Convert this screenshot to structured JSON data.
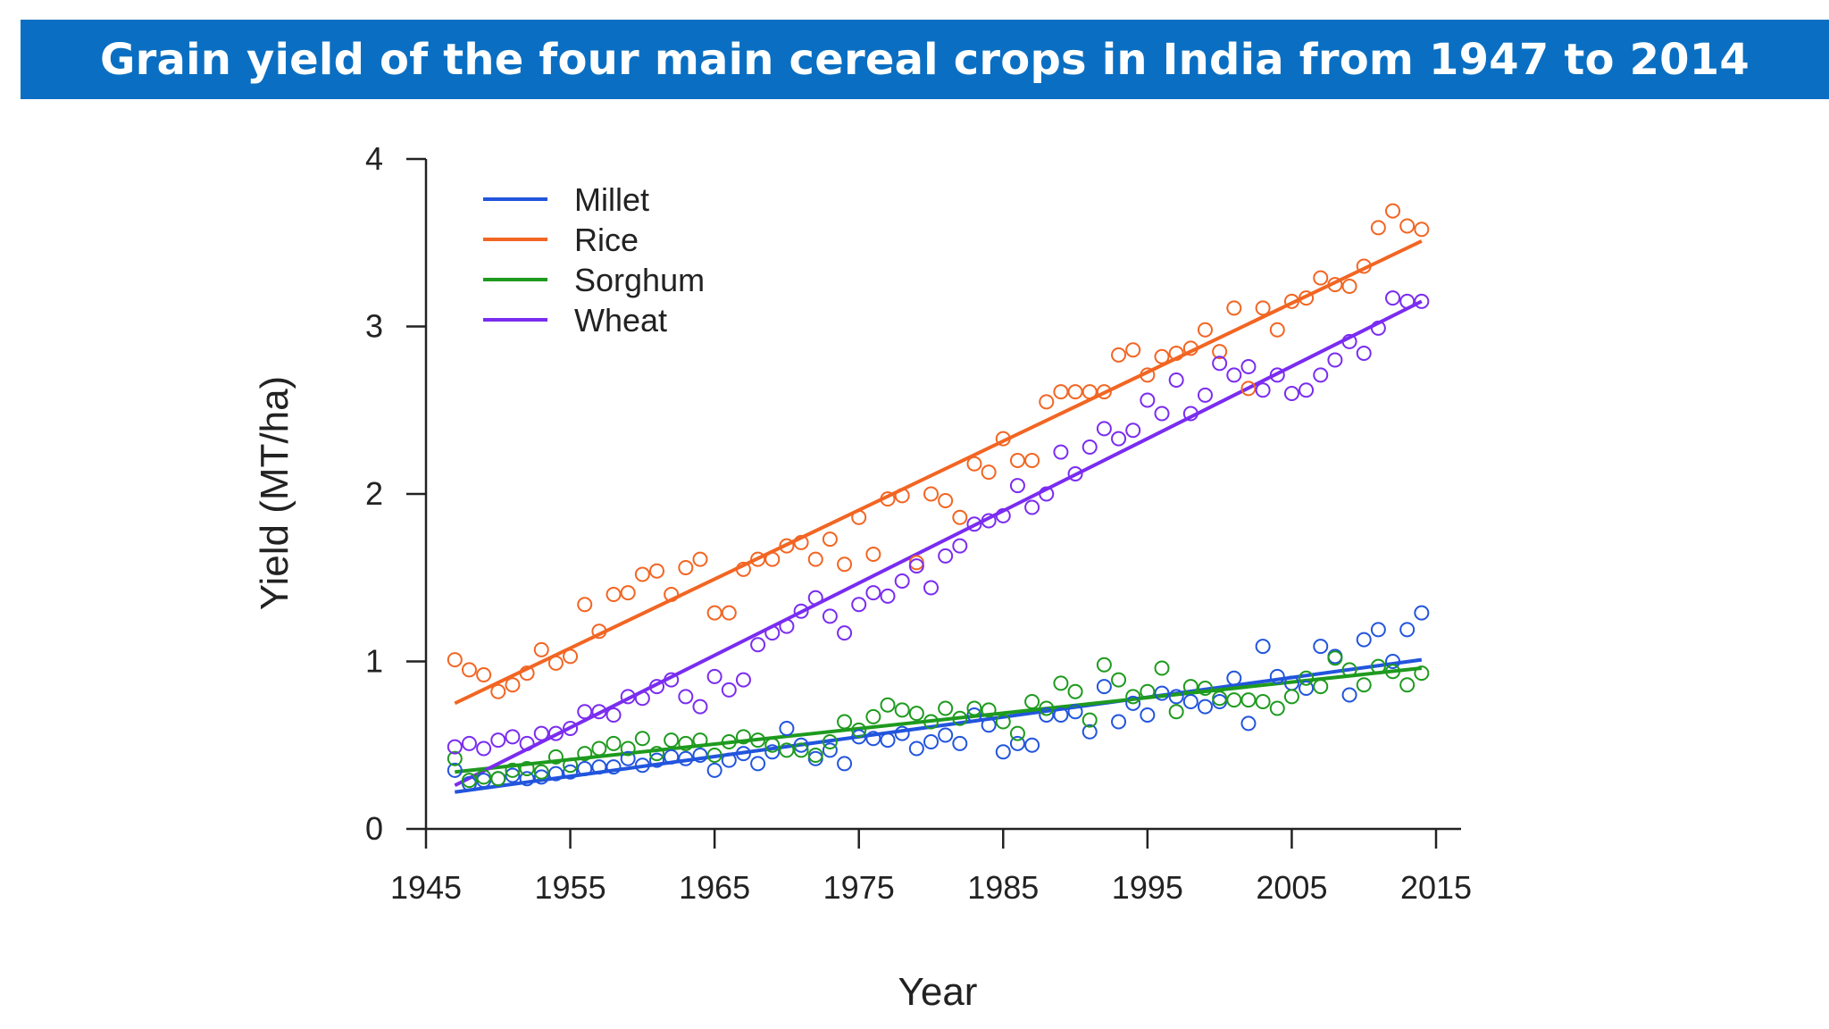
{
  "title": "Grain yield of the four main cereal crops in India from 1947 to 2014",
  "chart_data": {
    "type": "scatter",
    "title": "Grain yield of the four main cereal crops in India from 1947 to 2014",
    "xlabel": "Year",
    "ylabel": "Yield (MT/ha)",
    "xlim": [
      1945,
      2016
    ],
    "ylim": [
      0,
      4
    ],
    "xticks": [
      1945,
      1955,
      1965,
      1975,
      1985,
      1995,
      2005,
      2015
    ],
    "yticks": [
      0,
      1,
      2,
      3,
      4
    ],
    "grid": false,
    "legend_position": "top-left",
    "x": [
      1947,
      1948,
      1949,
      1950,
      1951,
      1952,
      1953,
      1954,
      1955,
      1956,
      1957,
      1958,
      1959,
      1960,
      1961,
      1962,
      1963,
      1964,
      1965,
      1966,
      1967,
      1968,
      1969,
      1970,
      1971,
      1972,
      1973,
      1974,
      1975,
      1976,
      1977,
      1978,
      1979,
      1980,
      1981,
      1982,
      1983,
      1984,
      1985,
      1986,
      1987,
      1988,
      1989,
      1990,
      1991,
      1992,
      1993,
      1994,
      1995,
      1996,
      1997,
      1998,
      1999,
      2000,
      2001,
      2002,
      2003,
      2004,
      2005,
      2006,
      2007,
      2008,
      2009,
      2010,
      2011,
      2012,
      2013,
      2014
    ],
    "series": [
      {
        "name": "Millet",
        "color": "#2255dd",
        "values": [
          0.35,
          0.27,
          0.29,
          0.3,
          0.32,
          0.3,
          0.31,
          0.33,
          0.34,
          0.36,
          0.37,
          0.37,
          0.42,
          0.38,
          0.41,
          0.43,
          0.42,
          0.44,
          0.35,
          0.41,
          0.45,
          0.39,
          0.46,
          0.6,
          0.5,
          0.42,
          0.47,
          0.39,
          0.55,
          0.54,
          0.53,
          0.57,
          0.48,
          0.52,
          0.56,
          0.51,
          0.68,
          0.62,
          0.46,
          0.51,
          0.5,
          0.68,
          0.68,
          0.7,
          0.58,
          0.85,
          0.64,
          0.75,
          0.68,
          0.81,
          0.79,
          0.76,
          0.73,
          0.76,
          0.9,
          0.63,
          1.09,
          0.91,
          0.87,
          0.84,
          1.09,
          1.03,
          0.8,
          1.13,
          1.19,
          1.0,
          1.19,
          1.29
        ],
        "trend": [
          0.22,
          1.01
        ]
      },
      {
        "name": "Rice",
        "color": "#f26522",
        "values": [
          1.01,
          0.95,
          0.92,
          0.82,
          0.86,
          0.93,
          1.07,
          0.99,
          1.03,
          1.34,
          1.18,
          1.4,
          1.41,
          1.52,
          1.54,
          1.4,
          1.56,
          1.61,
          1.29,
          1.29,
          1.55,
          1.61,
          1.61,
          1.69,
          1.71,
          1.61,
          1.73,
          1.58,
          1.86,
          1.64,
          1.97,
          1.99,
          1.59,
          2.0,
          1.96,
          1.86,
          2.18,
          2.13,
          2.33,
          2.2,
          2.2,
          2.55,
          2.61,
          2.61,
          2.61,
          2.61,
          2.83,
          2.86,
          2.71,
          2.82,
          2.84,
          2.87,
          2.98,
          2.85,
          3.11,
          2.63,
          3.11,
          2.98,
          3.15,
          3.17,
          3.29,
          3.25,
          3.24,
          3.36,
          3.59,
          3.69,
          3.6,
          3.58
        ],
        "trend": [
          0.75,
          3.51
        ]
      },
      {
        "name": "Sorghum",
        "color": "#1e9a1e",
        "values": [
          0.42,
          0.29,
          0.31,
          0.3,
          0.35,
          0.36,
          0.34,
          0.43,
          0.38,
          0.45,
          0.48,
          0.51,
          0.48,
          0.54,
          0.45,
          0.53,
          0.51,
          0.53,
          0.44,
          0.52,
          0.55,
          0.53,
          0.5,
          0.47,
          0.47,
          0.44,
          0.52,
          0.64,
          0.59,
          0.67,
          0.74,
          0.71,
          0.69,
          0.64,
          0.72,
          0.66,
          0.72,
          0.71,
          0.64,
          0.57,
          0.76,
          0.72,
          0.87,
          0.82,
          0.65,
          0.98,
          0.89,
          0.79,
          0.82,
          0.96,
          0.7,
          0.85,
          0.84,
          0.78,
          0.77,
          0.77,
          0.76,
          0.72,
          0.79,
          0.9,
          0.85,
          1.02,
          0.95,
          0.86,
          0.97,
          0.94,
          0.86,
          0.93
        ],
        "trend": [
          0.34,
          0.96
        ]
      },
      {
        "name": "Wheat",
        "color": "#7a2cf0",
        "values": [
          0.49,
          0.51,
          0.48,
          0.53,
          0.55,
          0.51,
          0.57,
          0.57,
          0.6,
          0.7,
          0.7,
          0.68,
          0.79,
          0.78,
          0.85,
          0.89,
          0.79,
          0.73,
          0.91,
          0.83,
          0.89,
          1.1,
          1.17,
          1.21,
          1.3,
          1.38,
          1.27,
          1.17,
          1.34,
          1.41,
          1.39,
          1.48,
          1.57,
          1.44,
          1.63,
          1.69,
          1.82,
          1.84,
          1.87,
          2.05,
          1.92,
          2.0,
          2.25,
          2.12,
          2.28,
          2.39,
          2.33,
          2.38,
          2.56,
          2.48,
          2.68,
          2.48,
          2.59,
          2.78,
          2.71,
          2.76,
          2.62,
          2.71,
          2.6,
          2.62,
          2.71,
          2.8,
          2.91,
          2.84,
          2.99,
          3.17,
          3.15,
          3.15
        ],
        "trend": [
          0.26,
          3.15
        ]
      }
    ]
  }
}
